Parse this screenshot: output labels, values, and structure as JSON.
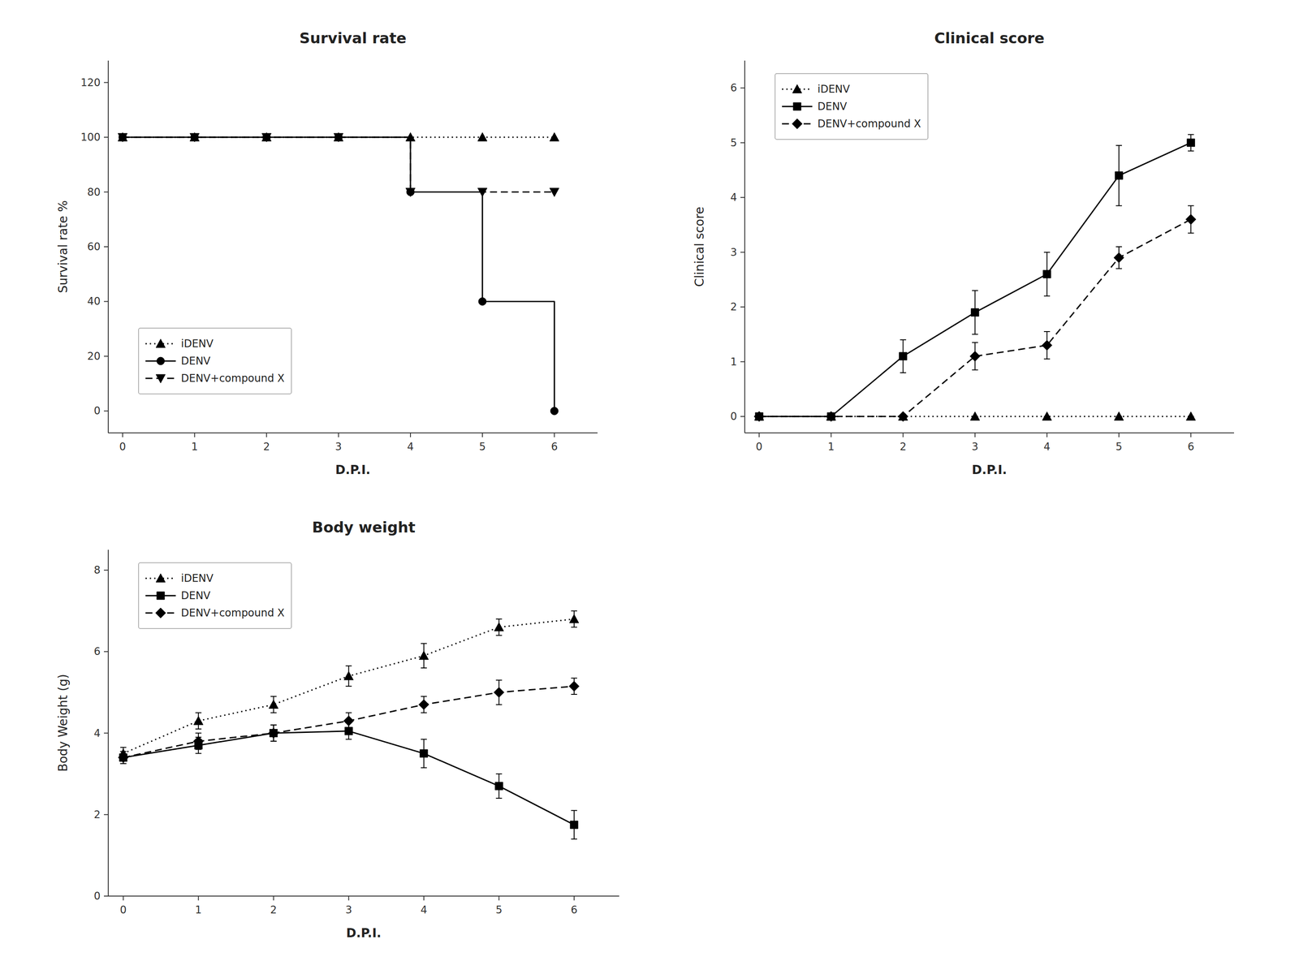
{
  "chart_data": [
    {
      "type": "line",
      "title": "Survival rate",
      "xlabel": "D.P.I.",
      "ylabel": "Survival rate %",
      "xlim": [
        -0.2,
        6.6
      ],
      "ylim": [
        -8,
        128
      ],
      "xticks": [
        0,
        1,
        2,
        3,
        4,
        5,
        6
      ],
      "yticks": [
        0,
        20,
        40,
        60,
        80,
        100,
        120
      ],
      "grid": false,
      "legend": "lower left",
      "series": [
        {
          "name": "iDENV",
          "color": "#000000",
          "line_style": "dotted",
          "marker": "triangle-up",
          "x": [
            0,
            1,
            2,
            3,
            4,
            5,
            6
          ],
          "values": [
            100,
            100,
            100,
            100,
            100,
            100,
            100
          ]
        },
        {
          "name": "DENV",
          "color": "#000000",
          "line_style": "solid",
          "marker": "circle",
          "x": [
            0,
            1,
            2,
            3,
            4,
            4,
            5,
            5,
            6,
            6
          ],
          "values": [
            100,
            100,
            100,
            100,
            100,
            80,
            80,
            40,
            40,
            0
          ],
          "marker_x": [
            0,
            1,
            2,
            3,
            4,
            5,
            6
          ],
          "marker_values": [
            100,
            100,
            100,
            100,
            80,
            40,
            0
          ]
        },
        {
          "name": "DENV+compound X",
          "color": "#000000",
          "line_style": "dashed",
          "marker": "triangle-down",
          "x": [
            0,
            1,
            2,
            3,
            4,
            4,
            5,
            6
          ],
          "values": [
            100,
            100,
            100,
            100,
            100,
            80,
            80,
            80
          ],
          "marker_x": [
            0,
            1,
            2,
            3,
            4,
            5,
            6
          ],
          "marker_values": [
            100,
            100,
            100,
            100,
            80,
            80,
            80
          ]
        }
      ]
    },
    {
      "type": "line",
      "title": "Clinical score",
      "xlabel": "D.P.I.",
      "ylabel": "Clinical score",
      "xlim": [
        -0.2,
        6.6
      ],
      "ylim": [
        -0.3,
        6.5
      ],
      "xticks": [
        0,
        1,
        2,
        3,
        4,
        5,
        6
      ],
      "yticks": [
        0,
        1,
        2,
        3,
        4,
        5,
        6
      ],
      "grid": false,
      "legend": "upper left",
      "series": [
        {
          "name": "iDENV",
          "color": "#000000",
          "line_style": "dotted",
          "marker": "triangle-up",
          "x": [
            0,
            1,
            2,
            3,
            4,
            5,
            6
          ],
          "values": [
            0,
            0,
            0,
            0,
            0,
            0,
            0
          ],
          "errors": [
            0,
            0,
            0,
            0,
            0,
            0,
            0
          ]
        },
        {
          "name": "DENV",
          "color": "#000000",
          "line_style": "solid",
          "marker": "square",
          "x": [
            0,
            1,
            2,
            3,
            4,
            5,
            6
          ],
          "values": [
            0,
            0,
            1.1,
            1.9,
            2.6,
            4.4,
            5.0
          ],
          "errors": [
            0,
            0,
            0.3,
            0.4,
            0.4,
            0.55,
            0.15
          ]
        },
        {
          "name": "DENV+compound X",
          "color": "#000000",
          "line_style": "dashed",
          "marker": "diamond",
          "x": [
            0,
            1,
            2,
            3,
            4,
            5,
            6
          ],
          "values": [
            0,
            0,
            0,
            1.1,
            1.3,
            2.9,
            3.6
          ],
          "errors": [
            0,
            0,
            0,
            0.25,
            0.25,
            0.2,
            0.25
          ]
        }
      ]
    },
    {
      "type": "line",
      "title": "Body weight",
      "xlabel": "D.P.I.",
      "ylabel": "Body Weight (g)",
      "xlim": [
        -0.2,
        6.6
      ],
      "ylim": [
        0,
        8.5
      ],
      "xticks": [
        0,
        1,
        2,
        3,
        4,
        5,
        6
      ],
      "yticks": [
        0,
        2,
        4,
        6,
        8
      ],
      "grid": false,
      "legend": "upper left",
      "series": [
        {
          "name": "iDENV",
          "color": "#000000",
          "line_style": "dotted",
          "marker": "triangle-up",
          "x": [
            0,
            1,
            2,
            3,
            4,
            5,
            6
          ],
          "values": [
            3.5,
            4.3,
            4.7,
            5.4,
            5.9,
            6.6,
            6.8
          ],
          "errors": [
            0.15,
            0.2,
            0.2,
            0.25,
            0.3,
            0.2,
            0.2
          ]
        },
        {
          "name": "DENV",
          "color": "#000000",
          "line_style": "solid",
          "marker": "square",
          "x": [
            0,
            1,
            2,
            3,
            4,
            5,
            6
          ],
          "values": [
            3.4,
            3.7,
            4.0,
            4.05,
            3.5,
            2.7,
            1.75
          ],
          "errors": [
            0.15,
            0.2,
            0.2,
            0.2,
            0.35,
            0.3,
            0.35
          ]
        },
        {
          "name": "DENV+compound X",
          "color": "#000000",
          "line_style": "dashed",
          "marker": "diamond",
          "x": [
            0,
            1,
            2,
            3,
            4,
            5,
            6
          ],
          "values": [
            3.4,
            3.8,
            4.0,
            4.3,
            4.7,
            5.0,
            5.15
          ],
          "errors": [
            0.15,
            0.2,
            0.2,
            0.2,
            0.2,
            0.3,
            0.2
          ]
        }
      ]
    }
  ]
}
